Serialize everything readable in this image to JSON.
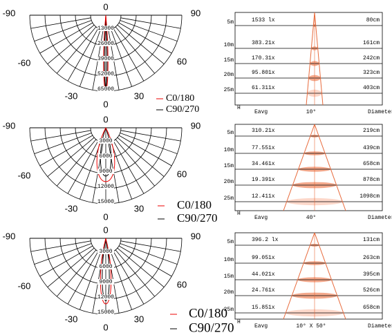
{
  "panels": [
    {
      "polar": {
        "angles": [
          "0",
          "-90",
          "90",
          "-60",
          "60",
          "-30",
          "30",
          "0"
        ],
        "rings": [
          "13000",
          "26000",
          "39000",
          "52000",
          "65000"
        ]
      },
      "legend": [
        "C0/180",
        "C90/270"
      ],
      "cone": {
        "distances": [
          "5m",
          "10m",
          "15m",
          "20m",
          "25m"
        ],
        "lux": [
          "1533 lx",
          "383.21x",
          "170.31x",
          "95.801x",
          "61.311x"
        ],
        "diameters": [
          "80cm",
          "161cm",
          "242cm",
          "323cm",
          "403cm"
        ],
        "footer": [
          "H",
          "Eavg",
          "10°",
          "Diameter"
        ]
      }
    },
    {
      "polar": {
        "angles": [
          "0",
          "-90",
          "90",
          "-60",
          "60",
          "-30",
          "30",
          "0"
        ],
        "rings": [
          "3000",
          "6000",
          "9000",
          "12000",
          "15000"
        ]
      },
      "legend": [
        "C0/180",
        "C90/270"
      ],
      "cone": {
        "distances": [
          "5m",
          "10m",
          "15m",
          "20m",
          "25m"
        ],
        "lux": [
          "310.21x",
          "77.551x",
          "34.461x",
          "19.391x",
          "12.411x"
        ],
        "diameters": [
          "219cm",
          "439cm",
          "658cm",
          "878cm",
          "1098cm"
        ],
        "footer": [
          "H",
          "Eavg",
          "40°",
          "Diameter"
        ]
      }
    },
    {
      "polar": {
        "angles": [
          "0",
          "-90",
          "90",
          "-60",
          "60",
          "-30",
          "30",
          "0"
        ],
        "rings": [
          "3000",
          "6000",
          "9000",
          "12000",
          "15000"
        ]
      },
      "legend": [
        "C0/180",
        "C90/270"
      ],
      "cone": {
        "distances": [
          "5m",
          "10m",
          "15m",
          "20m",
          "25m"
        ],
        "lux": [
          "396.2 lx",
          "99.051x",
          "44.021x",
          "24.761x",
          "15.851x"
        ],
        "diameters": [
          "131cm",
          "263cm",
          "395cm",
          "526cm",
          "658cm"
        ],
        "footer": [
          "H",
          "Eavg",
          "10° X 50°",
          "Diameter"
        ]
      }
    }
  ]
}
